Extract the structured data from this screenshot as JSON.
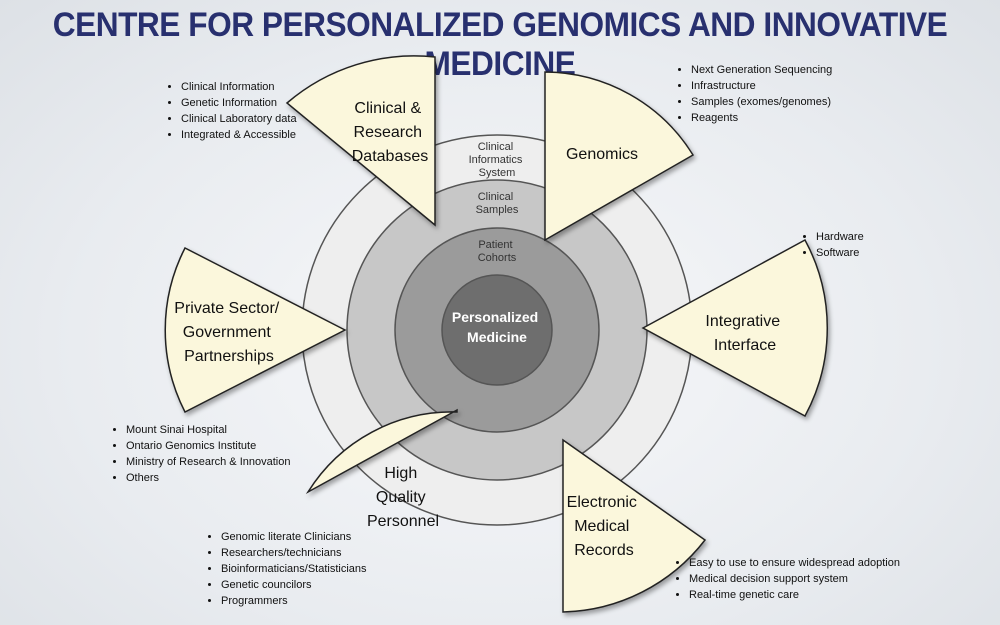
{
  "title": "CENTRE FOR PERSONALIZED GENOMICS AND INNOVATIVE MEDICINE",
  "colors": {
    "title": "#28306f",
    "wedge_fill": "#fbf7dc",
    "outer_ring": "#eeeeee",
    "middle_ring": "#c7c7c7",
    "inner_ring": "#9b9b9b",
    "center": "#6e6e6e"
  },
  "rings": {
    "outer": [
      "Clinical",
      "Informatics",
      "System"
    ],
    "middle": [
      "Clinical",
      "Samples"
    ],
    "inner": [
      "Patient",
      "Cohorts"
    ],
    "center": [
      "Personalized",
      "Medicine"
    ]
  },
  "wedges": [
    {
      "label": [
        "Clinical &",
        "Research",
        "Databases"
      ],
      "bullets": [
        "Clinical Information",
        "Genetic Information",
        "Clinical Laboratory data",
        "Integrated & Accessible"
      ]
    },
    {
      "label": [
        "Genomics"
      ],
      "bullets": [
        "Next Generation Sequencing",
        "Infrastructure",
        "Samples (exomes/genomes)",
        "Reagents"
      ]
    },
    {
      "label": [
        "Integrative",
        "Interface"
      ],
      "bullets": [
        "Hardware",
        "Software"
      ]
    },
    {
      "label": [
        "Electronic",
        "Medical",
        "Records"
      ],
      "bullets": [
        "Easy to use to ensure widespread adoption",
        "Medical decision support system",
        "Real-time genetic care"
      ]
    },
    {
      "label": [
        "High",
        "Quality",
        "Personnel"
      ],
      "bullets": [
        "Genomic literate Clinicians",
        "Researchers/technicians",
        "Bioinformaticians/Statisticians",
        "Genetic councilors",
        "Programmers"
      ]
    },
    {
      "label": [
        "Private Sector/",
        "Government",
        "Partnerships"
      ],
      "bullets": [
        "Mount Sinai Hospital",
        "Ontario Genomics Institute",
        "Ministry of Research & Innovation",
        "Others"
      ]
    }
  ]
}
